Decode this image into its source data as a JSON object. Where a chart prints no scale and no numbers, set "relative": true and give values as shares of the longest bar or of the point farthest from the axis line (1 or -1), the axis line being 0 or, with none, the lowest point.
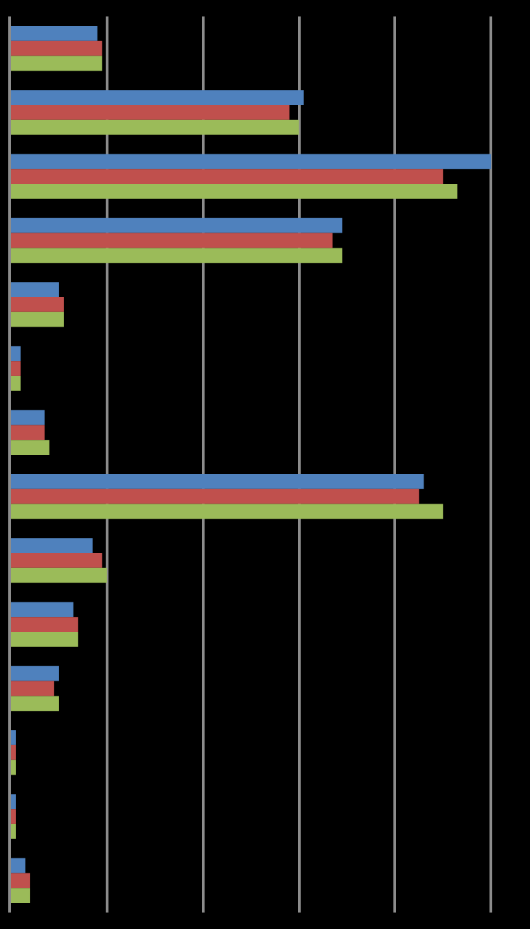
{
  "chart_data": {
    "type": "bar",
    "orientation": "horizontal",
    "relative": true,
    "grid": true,
    "categories": [
      null,
      null,
      null,
      null,
      null,
      null,
      null,
      null,
      null,
      null,
      null,
      null,
      null,
      null
    ],
    "series": [
      {
        "color": "#4f81bd",
        "values": [
          0.18,
          0.61,
          1,
          0.69,
          0.1,
          0.02,
          0.07,
          0.86,
          0.17,
          0.13,
          0.1,
          0.01,
          0.01,
          0.03
        ]
      },
      {
        "color": "#c0504d",
        "values": [
          0.19,
          0.58,
          0.9,
          0.67,
          0.11,
          0.02,
          0.07,
          0.85,
          0.19,
          0.14,
          0.09,
          0.01,
          0.01,
          0.04
        ]
      },
      {
        "color": "#9bbb59",
        "values": [
          0.19,
          0.6,
          0.93,
          0.69,
          0.11,
          0.02,
          0.08,
          0.9,
          0.2,
          0.14,
          0.1,
          0.01,
          0.01,
          0.04
        ]
      }
    ]
  }
}
